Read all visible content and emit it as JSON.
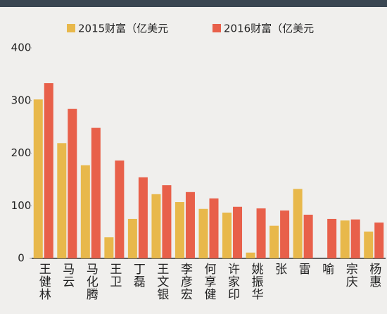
{
  "chart_data": {
    "type": "bar",
    "categories": [
      "王健林",
      "马云",
      "马化腾",
      "王卫",
      "丁磊",
      "王文银",
      "李彦宏",
      "何享健",
      "许家印",
      "姚振华",
      "张",
      "雷",
      "喻",
      "宗庆",
      "杨惠"
    ],
    "series": [
      {
        "name": "2015财富（亿美元",
        "color": "#e8b84b",
        "values": [
          302,
          219,
          177,
          40,
          75,
          122,
          107,
          94,
          87,
          11,
          62,
          132,
          null,
          72,
          51
        ]
      },
      {
        "name": "2016财富（亿美元",
        "color": "#e8604a",
        "values": [
          333,
          284,
          248,
          186,
          154,
          139,
          126,
          114,
          98,
          95,
          91,
          83,
          75,
          74,
          68
        ]
      }
    ],
    "ylim": [
      0,
      400
    ],
    "yticks": [
      0,
      100,
      200,
      300,
      400
    ]
  }
}
